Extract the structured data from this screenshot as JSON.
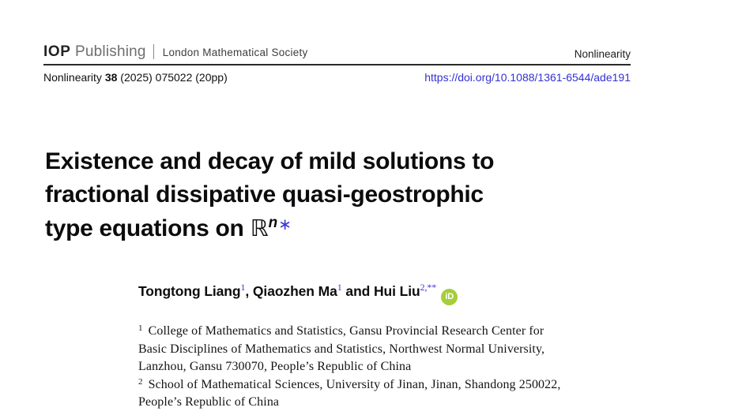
{
  "colors": {
    "link_blue": "#3431d3",
    "accent_blue": "#3a35dd",
    "orcid_green": "#a6ce39",
    "rule_dark": "#2a2a2a"
  },
  "masthead": {
    "publisher_bold": "IOP",
    "publisher_rest": "Publishing",
    "society": "London Mathematical Society",
    "journal": "Nonlinearity"
  },
  "citation": {
    "journal": "Nonlinearity",
    "volume": "38",
    "details": "(2025) 075022 (20pp)",
    "doi": "https://doi.org/10.1088/1361-6544/ade191"
  },
  "title": {
    "lines": [
      "Existence and decay of mild solutions to",
      "fractional dissipative quasi-geostrophic"
    ],
    "line3": {
      "text": "type equations on ",
      "set_symbol": "ℝ",
      "exponent": "n",
      "footnote_mark": "∗"
    }
  },
  "authors": {
    "items": [
      {
        "name": "Tongtong Liang",
        "sup": "1",
        "sep": ", "
      },
      {
        "name": "Qiaozhen Ma",
        "sup": "1",
        "sep": " and "
      },
      {
        "name": "Hui Liu",
        "sup": "2,**",
        "sep": ""
      }
    ],
    "orcid_label": "iD"
  },
  "affiliations": [
    {
      "marker": "1",
      "lines": [
        "College of Mathematics and Statistics, Gansu Provincial Research Center for",
        "Basic Disciplines of Mathematics and Statistics, Northwest Normal University,",
        "Lanzhou, Gansu 730070, People’s Republic of China"
      ]
    },
    {
      "marker": "2",
      "lines": [
        "School of Mathematical Sciences, University of Jinan, Jinan, Shandong 250022,",
        "People’s Republic of China"
      ]
    }
  ]
}
